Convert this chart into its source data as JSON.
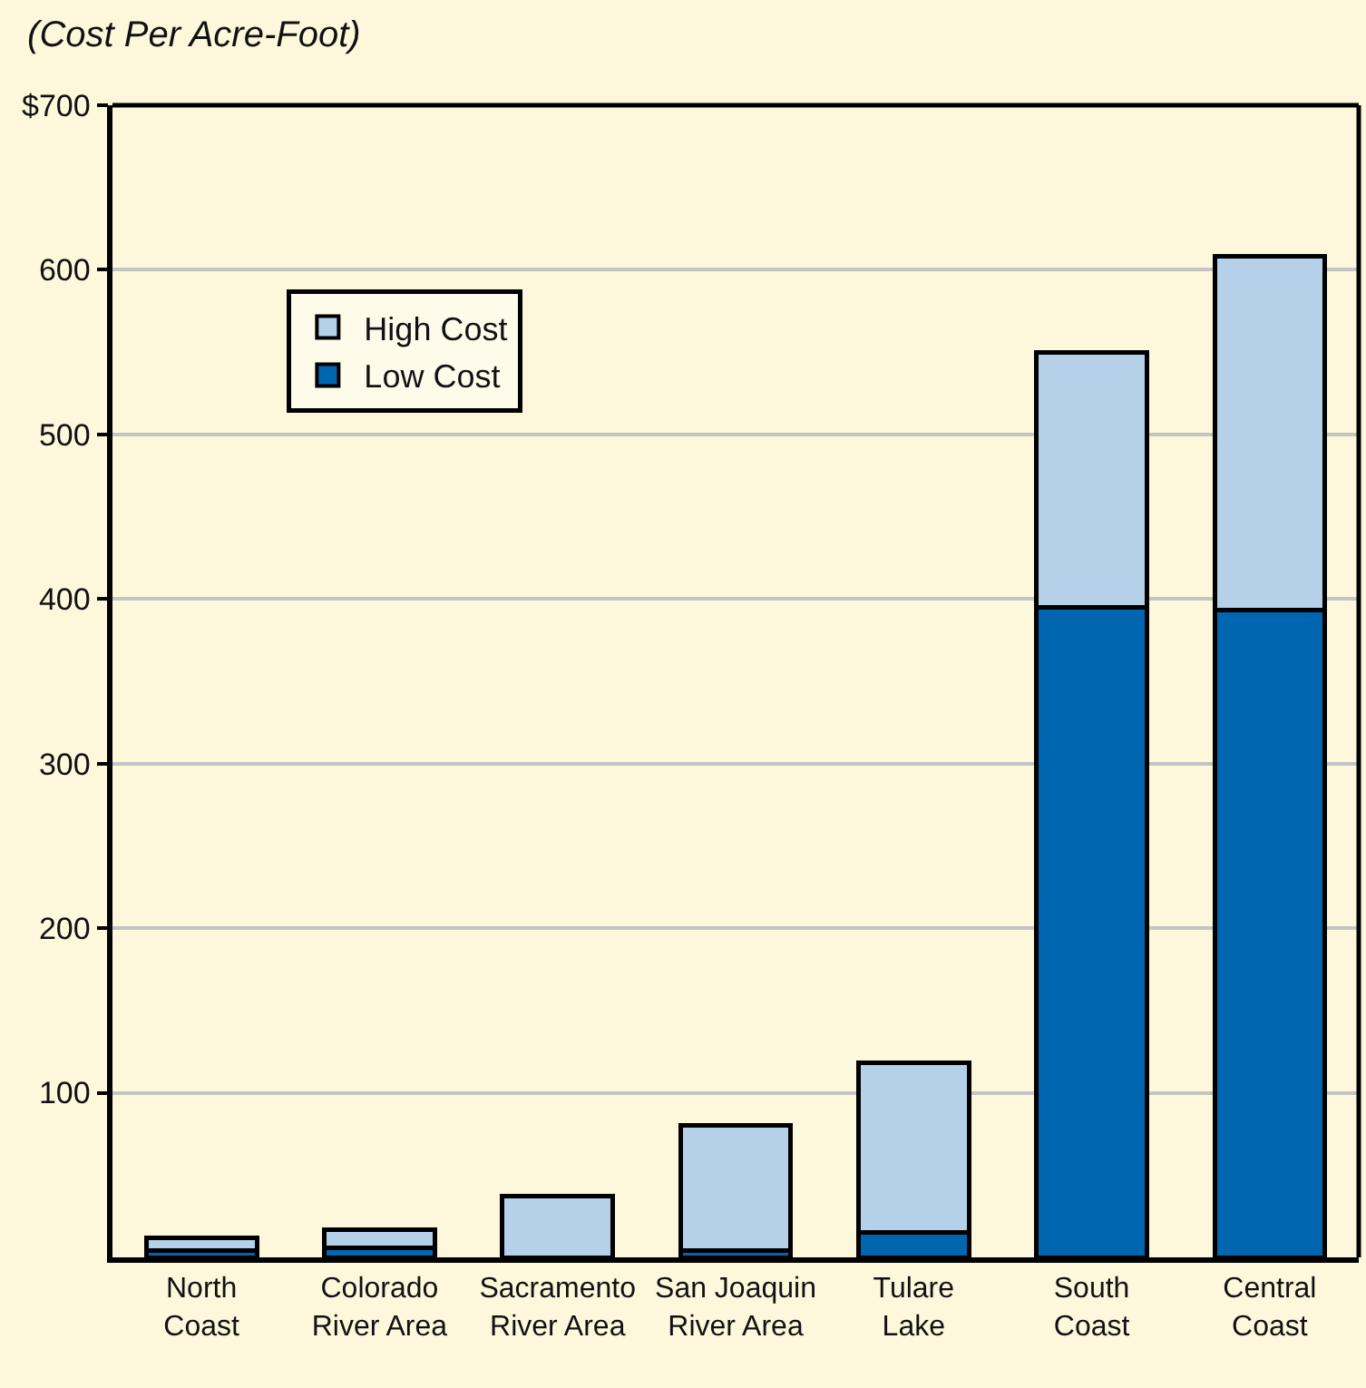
{
  "chart_data": {
    "type": "bar",
    "title": "(Cost Per Acre-Foot)",
    "categories": [
      "North\nCoast",
      "Colorado\nRiver Area",
      "Sacramento\nRiver Area",
      "San Joaquin\nRiver Area",
      "Tulare\nLake",
      "South\nCoast",
      "Central\nCoast"
    ],
    "stacked": true,
    "series": [
      {
        "name": "Low Cost",
        "color": "#0066b0",
        "values": [
          4,
          6,
          null,
          4,
          15,
          395,
          393
        ]
      },
      {
        "name": "High Cost",
        "color": "#b4d1e9",
        "values": [
          8,
          11,
          37,
          76,
          103,
          155,
          215
        ]
      }
    ],
    "ylim": [
      0,
      700
    ],
    "yticks": [
      {
        "value": 100,
        "label": "100"
      },
      {
        "value": 200,
        "label": "200"
      },
      {
        "value": 300,
        "label": "300"
      },
      {
        "value": 400,
        "label": "400"
      },
      {
        "value": 500,
        "label": "500"
      },
      {
        "value": 600,
        "label": "600"
      },
      {
        "value": 700,
        "label": "$700"
      }
    ],
    "grid": "y",
    "legend": "top left"
  }
}
